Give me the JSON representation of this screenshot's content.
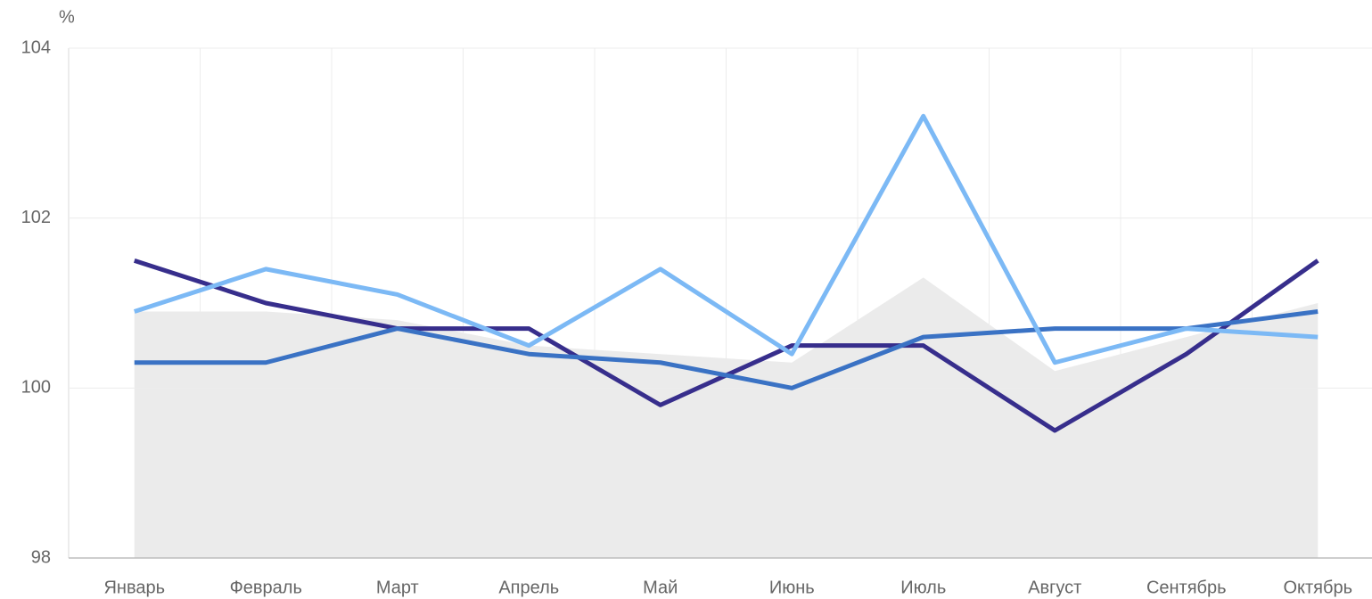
{
  "chart_data": {
    "type": "line",
    "y_label": "%",
    "categories": [
      "Январь",
      "Февраль",
      "Март",
      "Апрель",
      "Май",
      "Июнь",
      "Июль",
      "Август",
      "Сентябрь",
      "Октябрь"
    ],
    "series": [
      {
        "type": "area",
        "color": "#ebebeb",
        "values": [
          100.9,
          100.9,
          100.8,
          100.5,
          100.4,
          100.3,
          101.3,
          100.2,
          100.6,
          101.0
        ]
      },
      {
        "color": "#372e8c",
        "values": [
          101.5,
          101.0,
          100.7,
          100.7,
          99.8,
          100.5,
          100.5,
          99.5,
          100.4,
          101.5
        ]
      },
      {
        "color": "#3a72c4",
        "values": [
          100.3,
          100.3,
          100.7,
          100.4,
          100.3,
          100.0,
          100.6,
          100.7,
          100.7,
          100.9
        ]
      },
      {
        "color": "#7cb9f5",
        "values": [
          100.9,
          101.4,
          101.1,
          100.5,
          101.4,
          100.4,
          103.2,
          100.3,
          100.7,
          100.6
        ]
      }
    ],
    "ylim": [
      98,
      104
    ],
    "yticks": [
      98,
      100,
      102,
      104
    ],
    "grid": true
  }
}
